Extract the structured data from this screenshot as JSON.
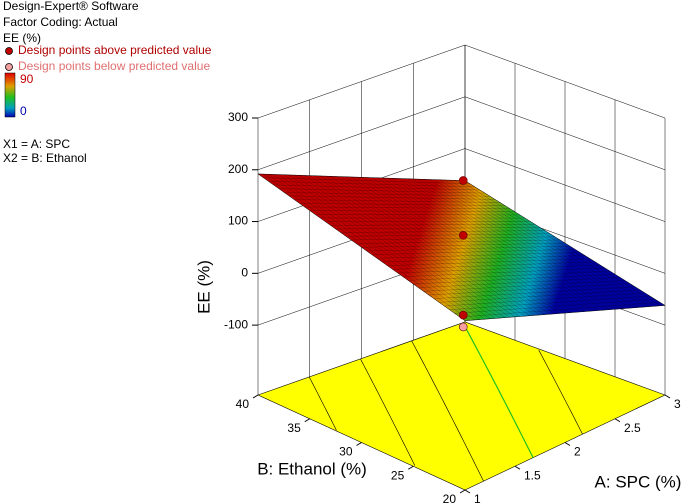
{
  "panel": {
    "software": "Design-Expert® Software",
    "coding": "Factor Coding: Actual",
    "response": "EE (%)",
    "factors": [
      "X1 = A: SPC",
      "X2 = B: Ethanol"
    ]
  },
  "chart_data": {
    "type": "surface",
    "zlabel": "EE (%)",
    "xlabel": "A: SPC (%)",
    "ylabel": "B: Ethanol (%)",
    "x": [
      1,
      3
    ],
    "y": [
      20,
      40
    ],
    "z": [
      [
        92,
        -62
      ],
      [
        192,
        38
      ]
    ],
    "xlim": [
      1,
      3
    ],
    "ylim": [
      20,
      40
    ],
    "zlim": [
      -235,
      300
    ],
    "xticks": [
      1,
      1.5,
      2,
      2.5,
      3
    ],
    "yticks": [
      20,
      25,
      30,
      35,
      40
    ],
    "zticks": [
      -100,
      0,
      100,
      200,
      300
    ],
    "colorbar": [
      0,
      90
    ],
    "series": [
      {
        "name": "Design points above predicted value",
        "color": "#c00000",
        "x": [
          2,
          2,
          2
        ],
        "y": [
          30,
          30,
          30
        ],
        "z": [
          190,
          84,
          -70
        ]
      },
      {
        "name": "Design points below predicted value",
        "color": "#f2a0a0",
        "x": [
          2
        ],
        "y": [
          30
        ],
        "z": [
          -93
        ]
      }
    ]
  }
}
